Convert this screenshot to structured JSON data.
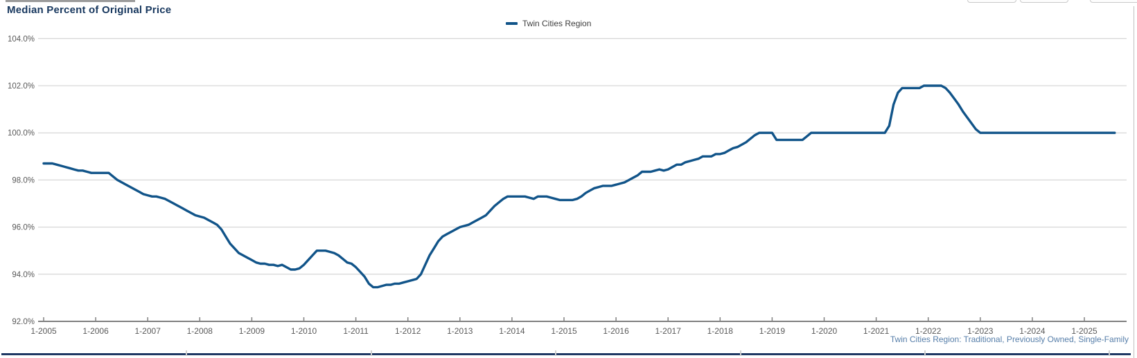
{
  "title": "Median Percent of Original Price",
  "legend": {
    "series_label": "Twin Cities Region"
  },
  "footnote": "Twin Cities Region: Traditional, Previously Owned, Single-Family",
  "colors": {
    "line": "#115489",
    "title": "#17375E",
    "grid": "#cccccc",
    "axis": "#7f7f7f",
    "tick_label": "#595959",
    "footnote": "#567EA9",
    "table_border": "#1F3864"
  },
  "chart_data": {
    "type": "line",
    "title": "Median Percent of Original Price",
    "ylabel": "",
    "xlabel": "",
    "ylim": [
      92,
      104
    ],
    "grid": "horizontal",
    "legend_position": "top-center",
    "y_ticks": [
      "104.0%",
      "102.0%",
      "100.0%",
      "98.0%",
      "96.0%",
      "94.0%",
      "92.0%"
    ],
    "x_ticks": [
      "1-2005",
      "1-2006",
      "1-2007",
      "1-2008",
      "1-2009",
      "1-2010",
      "1-2011",
      "1-2012",
      "1-2013",
      "1-2014",
      "1-2015",
      "1-2016",
      "1-2017",
      "1-2018",
      "1-2019",
      "1-2020",
      "1-2021",
      "1-2022",
      "1-2023",
      "1-2024",
      "1-2025"
    ],
    "series": [
      {
        "name": "Twin Cities Region",
        "start": "2005-01",
        "frequency": "monthly",
        "unit": "percent",
        "values": [
          98.7,
          98.7,
          98.7,
          98.65,
          98.6,
          98.55,
          98.5,
          98.45,
          98.4,
          98.4,
          98.35,
          98.3,
          98.3,
          98.3,
          98.3,
          98.3,
          98.15,
          98.0,
          97.9,
          97.8,
          97.7,
          97.6,
          97.5,
          97.4,
          97.35,
          97.3,
          97.3,
          97.25,
          97.2,
          97.1,
          97.0,
          96.9,
          96.8,
          96.7,
          96.6,
          96.5,
          96.45,
          96.4,
          96.3,
          96.2,
          96.1,
          95.9,
          95.6,
          95.3,
          95.1,
          94.9,
          94.8,
          94.7,
          94.6,
          94.5,
          94.45,
          94.45,
          94.4,
          94.4,
          94.35,
          94.4,
          94.3,
          94.2,
          94.2,
          94.25,
          94.4,
          94.6,
          94.8,
          95.0,
          95.0,
          95.0,
          94.95,
          94.9,
          94.8,
          94.65,
          94.5,
          94.45,
          94.3,
          94.1,
          93.9,
          93.6,
          93.45,
          93.45,
          93.5,
          93.55,
          93.55,
          93.6,
          93.6,
          93.65,
          93.7,
          93.75,
          93.8,
          94.0,
          94.4,
          94.8,
          95.1,
          95.4,
          95.6,
          95.7,
          95.8,
          95.9,
          96.0,
          96.05,
          96.1,
          96.2,
          96.3,
          96.4,
          96.5,
          96.7,
          96.9,
          97.05,
          97.2,
          97.3,
          97.3,
          97.3,
          97.3,
          97.3,
          97.25,
          97.2,
          97.3,
          97.3,
          97.3,
          97.25,
          97.2,
          97.15,
          97.15,
          97.15,
          97.15,
          97.2,
          97.3,
          97.45,
          97.55,
          97.65,
          97.7,
          97.75,
          97.75,
          97.75,
          97.8,
          97.85,
          97.9,
          98.0,
          98.1,
          98.2,
          98.35,
          98.35,
          98.35,
          98.4,
          98.45,
          98.4,
          98.45,
          98.55,
          98.65,
          98.65,
          98.75,
          98.8,
          98.85,
          98.9,
          99.0,
          99.0,
          99.0,
          99.1,
          99.1,
          99.15,
          99.25,
          99.35,
          99.4,
          99.5,
          99.6,
          99.75,
          99.9,
          100.0,
          100.0,
          100.0,
          100.0,
          99.7,
          99.7,
          99.7,
          99.7,
          99.7,
          99.7,
          99.7,
          99.85,
          100.0,
          100.0,
          100.0,
          100.0,
          100.0,
          100.0,
          100.0,
          100.0,
          100.0,
          100.0,
          100.0,
          100.0,
          100.0,
          100.0,
          100.0,
          100.0,
          100.0,
          100.0,
          100.3,
          101.2,
          101.7,
          101.9,
          101.9,
          101.9,
          101.9,
          101.9,
          102.0,
          102.0,
          102.0,
          102.0,
          102.0,
          101.9,
          101.7,
          101.45,
          101.2,
          100.9,
          100.65,
          100.4,
          100.15,
          100.0,
          100.0,
          100.0,
          100.0,
          100.0,
          100.0,
          100.0,
          100.0,
          100.0,
          100.0,
          100.0,
          100.0,
          100.0,
          100.0,
          100.0,
          100.0,
          100.0,
          100.0,
          100.0,
          100.0,
          100.0,
          100.0,
          100.0,
          100.0,
          100.0,
          100.0,
          100.0,
          100.0,
          100.0,
          100.0,
          100.0,
          100.0
        ]
      }
    ]
  }
}
